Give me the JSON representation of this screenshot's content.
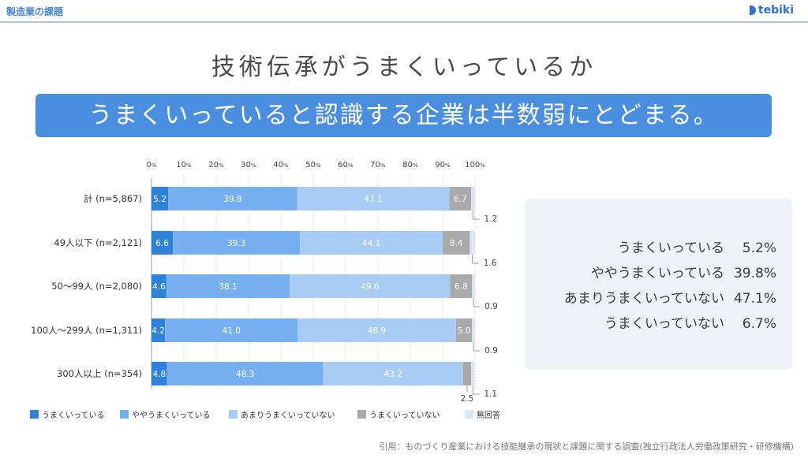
{
  "header": {
    "section_title": "製造業の課題",
    "brand": "tebiki"
  },
  "main_title": "技術伝承がうまくいっているか",
  "banner": "うまくいっていると認識する企業は半数弱にとどまる。",
  "chart_data": {
    "type": "bar",
    "orientation": "horizontal",
    "stacked": true,
    "x_ticks": [
      "0",
      "10",
      "20",
      "30",
      "40",
      "50",
      "60",
      "70",
      "80",
      "90",
      "100"
    ],
    "x_tick_unit": "%",
    "xlim": [
      0,
      100
    ],
    "categories": [
      "計 (n=5,867)",
      "49人以下 (n=2,121)",
      "50〜99人 (n=2,080)",
      "100人〜299人 (n=1,311)",
      "300人以上 (n=354)"
    ],
    "series": [
      {
        "name": "うまくいっている",
        "color": "#2e82d9",
        "values": [
          5.2,
          6.6,
          4.6,
          4.2,
          4.8
        ]
      },
      {
        "name": "ややうまくいっている",
        "color": "#76b0f0",
        "values": [
          39.8,
          39.3,
          38.1,
          41.0,
          48.3
        ]
      },
      {
        "name": "あまりうまくいっていない",
        "color": "#a9ccf4",
        "values": [
          47.1,
          44.1,
          49.6,
          48.9,
          43.2
        ]
      },
      {
        "name": "うまくいっていない",
        "color": "#aaaaaa",
        "values": [
          6.7,
          8.4,
          6.8,
          5.0,
          2.5
        ]
      },
      {
        "name": "無回答",
        "color": "#dde7f4",
        "values": [
          1.2,
          1.6,
          0.9,
          0.9,
          1.1
        ]
      }
    ],
    "data_labels": [
      [
        "5.2",
        "39.8",
        "47.1",
        "6.7",
        "1.2"
      ],
      [
        "6.6",
        "39.3",
        "44.1",
        "8.4",
        "1.6"
      ],
      [
        "4.6",
        "38.1",
        "49.6",
        "6.8",
        "0.9"
      ],
      [
        "4.2",
        "41.0",
        "48.9",
        "5.0",
        "0.9"
      ],
      [
        "4.8",
        "48.3",
        "43.2",
        "2.5",
        "1.1"
      ]
    ],
    "legend_position": "bottom"
  },
  "summary": [
    {
      "label": "うまくいっている",
      "value": "5.2%"
    },
    {
      "label": "ややうまくいっている",
      "value": "39.8%"
    },
    {
      "label": "あまりうまくいっていない",
      "value": "47.1%"
    },
    {
      "label": "うまくいっていない",
      "value": "6.7%"
    }
  ],
  "citation": "引用：ものづくり産業における技能継承の現状と課題に関する調査(独立行政法人労働政策研究・研修機構)"
}
